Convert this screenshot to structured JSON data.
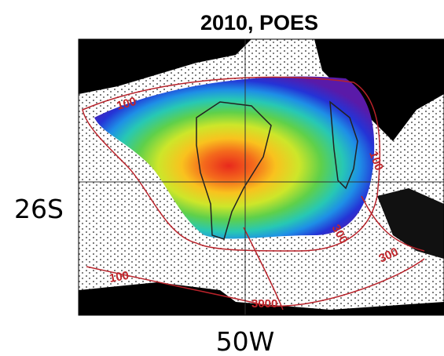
{
  "title": "2010, POES",
  "latitude_label": "26S",
  "longitude_label": "50W",
  "contour_labels": [
    "100",
    "100",
    "300",
    "300",
    "100",
    "3000"
  ]
}
